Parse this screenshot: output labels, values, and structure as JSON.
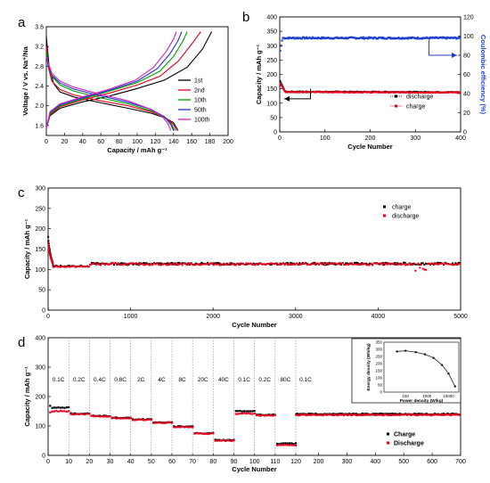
{
  "chart_data": [
    {
      "panel": "a",
      "type": "line",
      "xlabel": "Capacity / mAh g⁻¹",
      "ylabel": "Voltage / V vs. Na⁺/Na",
      "xlim": [
        0,
        200
      ],
      "ylim": [
        1.4,
        3.6
      ],
      "xticks": [
        0,
        20,
        40,
        60,
        80,
        100,
        120,
        140,
        160,
        180,
        200
      ],
      "yticks": [
        1.6,
        2.0,
        2.4,
        2.8,
        3.2,
        3.6
      ],
      "legend": "right",
      "series": [
        {
          "name": "1st",
          "color": "#000000",
          "discharge": [
            [
              0,
              3.4
            ],
            [
              3,
              2.8
            ],
            [
              8,
              2.45
            ],
            [
              15,
              2.28
            ],
            [
              30,
              2.18
            ],
            [
              60,
              2.06
            ],
            [
              90,
              1.95
            ],
            [
              115,
              1.85
            ],
            [
              130,
              1.76
            ],
            [
              140,
              1.66
            ],
            [
              145,
              1.5
            ]
          ],
          "charge": [
            [
              0,
              1.55
            ],
            [
              4,
              1.8
            ],
            [
              15,
              1.95
            ],
            [
              40,
              2.08
            ],
            [
              70,
              2.2
            ],
            [
              100,
              2.35
            ],
            [
              130,
              2.52
            ],
            [
              155,
              2.78
            ],
            [
              172,
              3.15
            ],
            [
              182,
              3.5
            ]
          ]
        },
        {
          "name": "2nd",
          "color": "#e8001c",
          "discharge": [
            [
              0,
              3.2
            ],
            [
              2,
              2.8
            ],
            [
              6,
              2.5
            ],
            [
              15,
              2.33
            ],
            [
              30,
              2.22
            ],
            [
              60,
              2.1
            ],
            [
              90,
              2.0
            ],
            [
              115,
              1.88
            ],
            [
              132,
              1.75
            ],
            [
              140,
              1.62
            ],
            [
              143,
              1.5
            ]
          ],
          "charge": [
            [
              0,
              1.55
            ],
            [
              4,
              1.82
            ],
            [
              15,
              1.98
            ],
            [
              40,
              2.12
            ],
            [
              70,
              2.26
            ],
            [
              100,
              2.42
            ],
            [
              125,
              2.6
            ],
            [
              145,
              2.9
            ],
            [
              160,
              3.25
            ],
            [
              170,
              3.5
            ]
          ]
        },
        {
          "name": "10th",
          "color": "#00a000",
          "discharge": [
            [
              0,
              3.1
            ],
            [
              2,
              2.85
            ],
            [
              6,
              2.6
            ],
            [
              15,
              2.42
            ],
            [
              30,
              2.3
            ],
            [
              60,
              2.16
            ],
            [
              90,
              2.04
            ],
            [
              115,
              1.9
            ],
            [
              130,
              1.77
            ],
            [
              138,
              1.62
            ],
            [
              141,
              1.5
            ]
          ],
          "charge": [
            [
              0,
              1.55
            ],
            [
              4,
              1.84
            ],
            [
              15,
              2.0
            ],
            [
              40,
              2.14
            ],
            [
              70,
              2.3
            ],
            [
              100,
              2.47
            ],
            [
              125,
              2.7
            ],
            [
              140,
              3.0
            ],
            [
              150,
              3.3
            ],
            [
              155,
              3.5
            ]
          ]
        },
        {
          "name": "50th",
          "color": "#1c2fc8",
          "discharge": [
            [
              0,
              3.0
            ],
            [
              2,
              2.85
            ],
            [
              6,
              2.62
            ],
            [
              15,
              2.46
            ],
            [
              30,
              2.34
            ],
            [
              60,
              2.2
            ],
            [
              90,
              2.07
            ],
            [
              115,
              1.93
            ],
            [
              130,
              1.78
            ],
            [
              137,
              1.62
            ],
            [
              140,
              1.5
            ]
          ],
          "charge": [
            [
              0,
              1.55
            ],
            [
              4,
              1.86
            ],
            [
              15,
              2.02
            ],
            [
              40,
              2.16
            ],
            [
              70,
              2.32
            ],
            [
              100,
              2.5
            ],
            [
              122,
              2.75
            ],
            [
              136,
              3.05
            ],
            [
              145,
              3.32
            ],
            [
              149,
              3.5
            ]
          ]
        },
        {
          "name": "100th",
          "color": "#d020c8",
          "discharge": [
            [
              0,
              3.0
            ],
            [
              2,
              2.88
            ],
            [
              6,
              2.66
            ],
            [
              15,
              2.5
            ],
            [
              30,
              2.38
            ],
            [
              60,
              2.23
            ],
            [
              90,
              2.1
            ],
            [
              112,
              1.95
            ],
            [
              127,
              1.8
            ],
            [
              134,
              1.63
            ],
            [
              137,
              1.5
            ]
          ],
          "charge": [
            [
              0,
              1.55
            ],
            [
              4,
              1.88
            ],
            [
              15,
              2.04
            ],
            [
              40,
              2.18
            ],
            [
              70,
              2.34
            ],
            [
              98,
              2.52
            ],
            [
              118,
              2.78
            ],
            [
              132,
              3.1
            ],
            [
              140,
              3.35
            ],
            [
              143,
              3.5
            ]
          ]
        }
      ]
    },
    {
      "panel": "b",
      "type": "scatter",
      "xlabel": "Cycle Number",
      "ylabel": "Capacity / mAh g⁻¹",
      "ylabel_right": "Coulombic efficiency (%)",
      "xlim": [
        0,
        400
      ],
      "ylim": [
        0,
        400
      ],
      "ylim_right": [
        0,
        120
      ],
      "xticks": [
        0,
        100,
        200,
        300,
        400
      ],
      "yticks": [
        0,
        50,
        100,
        150,
        200,
        250,
        300,
        350,
        400
      ],
      "yticks_right": [
        0,
        20,
        40,
        60,
        80,
        100,
        120
      ],
      "legend": "bottom-right",
      "series": [
        {
          "name": "discharge",
          "color": "#000000",
          "start": 180,
          "plateau": 140,
          "end": 138
        },
        {
          "name": "charge",
          "color": "#e8001c",
          "start": 170,
          "plateau": 139,
          "end": 137
        },
        {
          "name": "",
          "color": "#1c3fd0",
          "axis": "right",
          "start": 82,
          "plateau": 98,
          "end": 98
        }
      ]
    },
    {
      "panel": "c",
      "type": "scatter",
      "xlabel": "Cycle Number",
      "ylabel": "Capacity / mAh g⁻¹",
      "xlim": [
        0,
        5000
      ],
      "ylim": [
        0,
        300
      ],
      "xticks": [
        0,
        1000,
        2000,
        3000,
        4000,
        5000
      ],
      "yticks": [
        0,
        50,
        100,
        150,
        200,
        250,
        300
      ],
      "legend": "top-right",
      "series": [
        {
          "name": "charge",
          "color": "#000000",
          "start": 190,
          "plateau": 113
        },
        {
          "name": "discharge",
          "color": "#e8001c",
          "start": 175,
          "plateau": 112
        }
      ]
    },
    {
      "panel": "d",
      "type": "scatter",
      "xlabel": "Cycle Number",
      "ylabel": "Capacity / mAh g⁻¹",
      "xlim": [
        0,
        700
      ],
      "ylim": [
        0,
        400
      ],
      "xticks": [
        0,
        10,
        20,
        30,
        40,
        50,
        60,
        70,
        80,
        90,
        100,
        110,
        120,
        200,
        300,
        400,
        500,
        600,
        700
      ],
      "yticks": [
        0,
        100,
        200,
        300,
        400
      ],
      "legend": "bottom-right",
      "rates": [
        {
          "label": "0.1C",
          "start": 0,
          "end": 10,
          "charge": 162,
          "discharge": 150
        },
        {
          "label": "0.2C",
          "start": 10,
          "end": 20,
          "charge": 142,
          "discharge": 140
        },
        {
          "label": "0.4C",
          "start": 20,
          "end": 30,
          "charge": 134,
          "discharge": 133
        },
        {
          "label": "0.8C",
          "start": 30,
          "end": 40,
          "charge": 128,
          "discharge": 127
        },
        {
          "label": "2C",
          "start": 40,
          "end": 50,
          "charge": 122,
          "discharge": 121
        },
        {
          "label": "4C",
          "start": 50,
          "end": 60,
          "charge": 112,
          "discharge": 111
        },
        {
          "label": "8C",
          "start": 60,
          "end": 70,
          "charge": 98,
          "discharge": 97
        },
        {
          "label": "20C",
          "start": 70,
          "end": 80,
          "charge": 75,
          "discharge": 74
        },
        {
          "label": "40C",
          "start": 80,
          "end": 90,
          "charge": 52,
          "discharge": 50
        },
        {
          "label": "0.1C",
          "start": 90,
          "end": 100,
          "charge": 150,
          "discharge": 142
        },
        {
          "label": "0.2C",
          "start": 100,
          "end": 110,
          "charge": 138,
          "discharge": 136
        },
        {
          "label": "80C",
          "start": 110,
          "end": 120,
          "charge": 40,
          "discharge": 35
        },
        {
          "label": "0.1C",
          "start": 120,
          "end": 700,
          "charge": 140,
          "discharge": 138
        }
      ],
      "series": [
        {
          "name": "Charge",
          "color": "#000000"
        },
        {
          "name": "Discharge",
          "color": "#e8001c"
        }
      ],
      "inset": {
        "type": "line",
        "xlabel": "Power density (W/kg)",
        "ylabel": "Energy density (Wh/kg)",
        "xscale": "log",
        "xlim": [
          10,
          30000
        ],
        "ylim": [
          0,
          350
        ],
        "xticks": [
          100,
          1000,
          10000
        ],
        "yticks": [
          0,
          50,
          100,
          150,
          200,
          250,
          300,
          350
        ],
        "x": [
          40,
          100,
          300,
          800,
          2000,
          5000,
          10000,
          20000
        ],
        "y": [
          285,
          290,
          280,
          265,
          240,
          190,
          130,
          40
        ]
      }
    }
  ]
}
